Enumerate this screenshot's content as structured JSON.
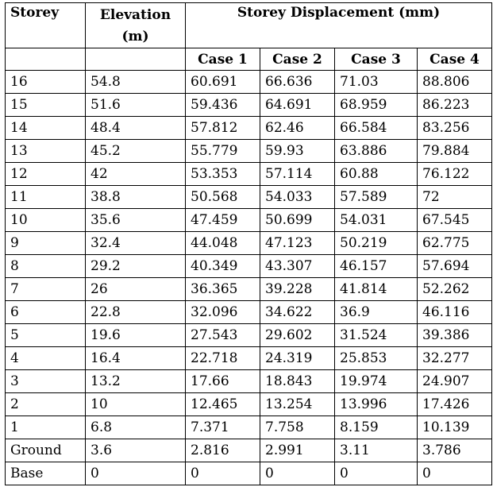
{
  "headers": {
    "storey": "Storey",
    "elevation": "Elevation (m)",
    "displacement": "Storey Displacement (mm)",
    "cases": [
      "Case 1",
      "Case 2",
      "Case 3",
      "Case 4"
    ]
  },
  "rows": [
    {
      "storey": "16",
      "elevation": "54.8",
      "c1": "60.691",
      "c2": "66.636",
      "c3": "71.03",
      "c4": "88.806"
    },
    {
      "storey": "15",
      "elevation": "51.6",
      "c1": "59.436",
      "c2": "64.691",
      "c3": "68.959",
      "c4": "86.223"
    },
    {
      "storey": "14",
      "elevation": "48.4",
      "c1": "57.812",
      "c2": "62.46",
      "c3": "66.584",
      "c4": "83.256"
    },
    {
      "storey": "13",
      "elevation": "45.2",
      "c1": "55.779",
      "c2": "59.93",
      "c3": "63.886",
      "c4": "79.884"
    },
    {
      "storey": "12",
      "elevation": "42",
      "c1": "53.353",
      "c2": "57.114",
      "c3": "60.88",
      "c4": "76.122"
    },
    {
      "storey": "11",
      "elevation": "38.8",
      "c1": "50.568",
      "c2": "54.033",
      "c3": "57.589",
      "c4": "72"
    },
    {
      "storey": "10",
      "elevation": "35.6",
      "c1": "47.459",
      "c2": "50.699",
      "c3": "54.031",
      "c4": "67.545"
    },
    {
      "storey": "9",
      "elevation": "32.4",
      "c1": "44.048",
      "c2": "47.123",
      "c3": "50.219",
      "c4": "62.775"
    },
    {
      "storey": "8",
      "elevation": "29.2",
      "c1": "40.349",
      "c2": "43.307",
      "c3": "46.157",
      "c4": "57.694"
    },
    {
      "storey": "7",
      "elevation": "26",
      "c1": "36.365",
      "c2": "39.228",
      "c3": "41.814",
      "c4": "52.262"
    },
    {
      "storey": "6",
      "elevation": "22.8",
      "c1": "32.096",
      "c2": "34.622",
      "c3": "36.9",
      "c4": "46.116"
    },
    {
      "storey": "5",
      "elevation": "19.6",
      "c1": "27.543",
      "c2": "29.602",
      "c3": "31.524",
      "c4": "39.386"
    },
    {
      "storey": "4",
      "elevation": "16.4",
      "c1": "22.718",
      "c2": "24.319",
      "c3": "25.853",
      "c4": "32.277"
    },
    {
      "storey": "3",
      "elevation": "13.2",
      "c1": "17.66",
      "c2": "18.843",
      "c3": "19.974",
      "c4": "24.907"
    },
    {
      "storey": "2",
      "elevation": "10",
      "c1": "12.465",
      "c2": "13.254",
      "c3": "13.996",
      "c4": "17.426"
    },
    {
      "storey": "1",
      "elevation": "6.8",
      "c1": "7.371",
      "c2": "7.758",
      "c3": "8.159",
      "c4": "10.139"
    },
    {
      "storey": "Ground",
      "elevation": "3.6",
      "c1": "2.816",
      "c2": "2.991",
      "c3": "3.11",
      "c4": "3.786"
    },
    {
      "storey": "Base",
      "elevation": "0",
      "c1": "0",
      "c2": "0",
      "c3": "0",
      "c4": "0"
    }
  ]
}
